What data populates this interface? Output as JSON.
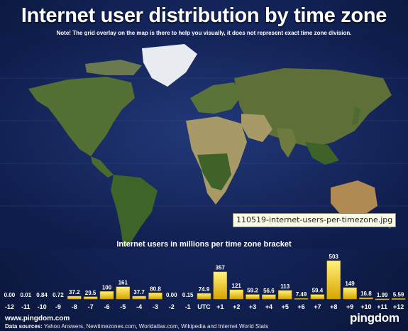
{
  "title": "Internet user distribution by time zone",
  "note": "Note! The grid overlay on the map is there to help you visually, it does not represent exact time zone division.",
  "tooltip": "110519-internet-users-per-timezone.jpg",
  "footer": {
    "url": "www.pingdom.com",
    "sources_label": "Data sources:",
    "sources": "Yahoo Answers, Newtimezones.com, Worldatlas.com, Wikipedia and Internet World Stats",
    "logo": "pingdom"
  },
  "colors": {
    "background": "#0d1a44",
    "ocean": "#14285e",
    "land": "#4e6a32",
    "desert": "#a89a66",
    "ice": "#e8ecf0",
    "bar_top": "#fff066",
    "bar_bottom": "#d9a400"
  },
  "chart_data": {
    "type": "bar",
    "title": "Internet users in millions per time zone bracket",
    "categories": [
      "-12",
      "-11",
      "-10",
      "-9",
      "-8",
      "-7",
      "-6",
      "-5",
      "-4",
      "-3",
      "-2",
      "-1",
      "UTC",
      "+1",
      "+2",
      "+3",
      "+4",
      "+5",
      "+6",
      "+7",
      "+8",
      "+9",
      "+10",
      "+11",
      "+12"
    ],
    "values": [
      0.0,
      0.01,
      0.84,
      0.72,
      37.2,
      29.5,
      100,
      161,
      37.7,
      80.8,
      0.0,
      0.15,
      74.9,
      357,
      121,
      59.2,
      56.6,
      113,
      7.49,
      59.4,
      503,
      149,
      16.8,
      1.99,
      5.59
    ],
    "value_labels": [
      "0.00",
      "0.01",
      "0.84",
      "0.72",
      "37.2",
      "29.5",
      "100",
      "161",
      "37.7",
      "80.8",
      "0.00",
      "0.15",
      "74.9",
      "357",
      "121",
      "59.2",
      "56.6",
      "113",
      "7.49",
      "59.4",
      "503",
      "149",
      "16.8",
      "1.99",
      "5.59"
    ],
    "ylim": [
      0,
      503
    ],
    "grid": false,
    "legend": "none"
  }
}
